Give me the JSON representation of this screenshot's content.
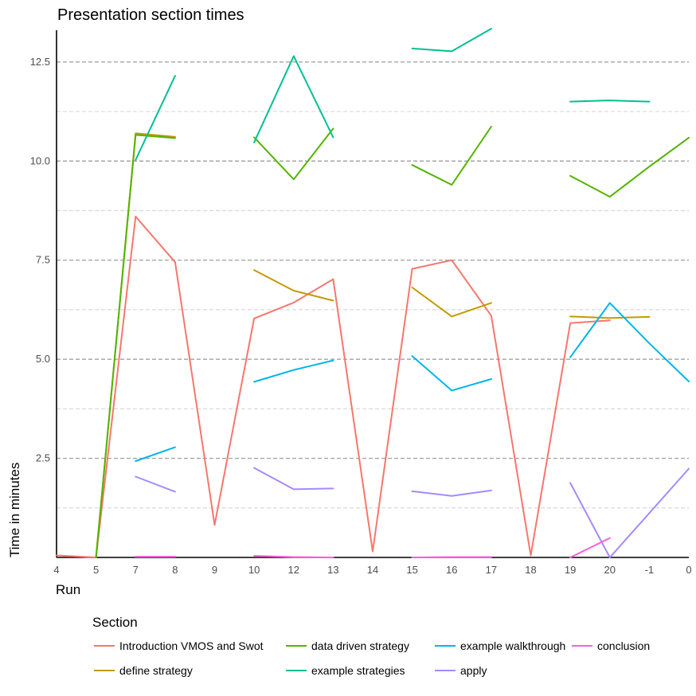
{
  "chart_data": {
    "type": "line",
    "title": "Presentation section times",
    "xlabel": "Run",
    "ylabel": "Time in minutes",
    "categories": [
      "4",
      "5",
      "7",
      "8",
      "9",
      "10",
      "12",
      "13",
      "14",
      "15",
      "16",
      "17",
      "18",
      "19",
      "20",
      "-1",
      "0"
    ],
    "ylim": [
      0,
      13.3
    ],
    "yticks": [
      2.5,
      5.0,
      7.5,
      10.0,
      12.5
    ],
    "ytick_labels": [
      "2.5",
      "5.0",
      "7.5",
      "10.0",
      "12.5"
    ],
    "minor_gridlines": [
      1.25,
      3.75,
      6.25,
      8.75,
      11.25
    ],
    "legend_title": "Section",
    "legend_position": "bottom",
    "series": [
      {
        "name": "Introduction VMOS and Swot",
        "color": "#F8766D",
        "values": [
          0.05,
          0.0,
          8.6,
          7.45,
          0.82,
          6.03,
          6.43,
          7.02,
          0.15,
          7.28,
          7.5,
          6.1,
          0.05,
          5.91,
          5.98,
          null,
          null
        ]
      },
      {
        "name": "define strategy",
        "color": "#C49A00",
        "values": [
          null,
          0.0,
          10.7,
          10.61,
          null,
          7.25,
          6.73,
          6.48,
          null,
          6.81,
          6.08,
          6.42,
          null,
          6.08,
          6.04,
          6.07,
          null
        ]
      },
      {
        "name": "data driven strategy",
        "color": "#53B400",
        "values": [
          null,
          0.0,
          10.66,
          10.58,
          null,
          10.6,
          9.54,
          10.82,
          null,
          9.9,
          9.4,
          10.87,
          null,
          9.63,
          9.1,
          9.86,
          10.59
        ]
      },
      {
        "name": "example strategies",
        "color": "#00C094",
        "values": [
          null,
          null,
          10.03,
          12.15,
          null,
          10.47,
          12.65,
          10.6,
          null,
          12.84,
          12.77,
          13.34,
          null,
          11.5,
          11.53,
          11.5,
          null
        ]
      },
      {
        "name": "example walkthrough",
        "color": "#00B6EB",
        "values": [
          null,
          null,
          2.43,
          2.78,
          null,
          4.43,
          4.73,
          4.97,
          null,
          5.08,
          4.21,
          4.5,
          null,
          5.05,
          6.42,
          5.4,
          4.44
        ]
      },
      {
        "name": "apply",
        "color": "#A58AFF",
        "values": [
          null,
          null,
          2.04,
          1.66,
          null,
          2.26,
          1.72,
          1.74,
          null,
          1.67,
          1.55,
          1.69,
          null,
          1.88,
          0.0,
          1.12,
          2.24
        ]
      },
      {
        "name": "conclusion",
        "color": "#FB61D7",
        "values": [
          null,
          null,
          0.02,
          0.02,
          null,
          0.04,
          0.01,
          0.0,
          null,
          0.0,
          0.01,
          0.01,
          null,
          0.0,
          0.49,
          null,
          null
        ]
      }
    ]
  }
}
